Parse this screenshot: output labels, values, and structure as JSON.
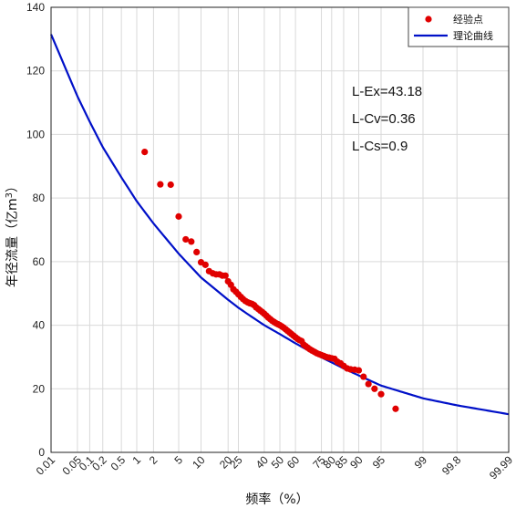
{
  "chart_data": {
    "type": "scatter",
    "title": "",
    "xlabel": "频率（%）",
    "ylabel_prefix": "年径流量（亿m",
    "ylabel_sup": "3",
    "ylabel_suffix": "）",
    "ylim": [
      0,
      140
    ],
    "ytick_step": 20,
    "x_scale": "probability (normal)",
    "xticks": [
      "0.01",
      "0.05",
      "0.1",
      "0.2",
      "0.5",
      "1",
      "2",
      "5",
      "10",
      "20",
      "25",
      "40",
      "50",
      "60",
      "75",
      "80",
      "85",
      "90",
      "95",
      "99",
      "99.8",
      "99.99"
    ],
    "legend_position": "top-right",
    "colors": {
      "points": "#e00000",
      "curve": "#0010c8",
      "grid": "#d9d9d9"
    },
    "annotations": [
      "L-Ex=43.18",
      "L-Cv=0.36",
      "L-Cs=0.9"
    ],
    "series": [
      {
        "name": "经验点",
        "kind": "scatter",
        "points": [
          [
            1.4,
            94.5
          ],
          [
            2.6,
            84.3
          ],
          [
            3.8,
            84.2
          ],
          [
            5.0,
            74.2
          ],
          [
            6.3,
            67.0
          ],
          [
            7.5,
            66.3
          ],
          [
            8.8,
            63.0
          ],
          [
            10.0,
            59.8
          ],
          [
            11.3,
            59.0
          ],
          [
            12.5,
            57.0
          ],
          [
            13.8,
            56.3
          ],
          [
            15.0,
            56.0
          ],
          [
            16.3,
            56.0
          ],
          [
            17.5,
            55.6
          ],
          [
            18.8,
            55.6
          ],
          [
            20.0,
            53.8
          ],
          [
            21.3,
            52.7
          ],
          [
            22.5,
            51.3
          ],
          [
            23.8,
            50.5
          ],
          [
            25.0,
            49.7
          ],
          [
            26.3,
            48.9
          ],
          [
            27.5,
            48.2
          ],
          [
            28.8,
            47.6
          ],
          [
            30.0,
            47.2
          ],
          [
            31.3,
            46.9
          ],
          [
            32.5,
            46.7
          ],
          [
            33.8,
            46.3
          ],
          [
            35.0,
            45.6
          ],
          [
            36.3,
            45.1
          ],
          [
            37.5,
            44.6
          ],
          [
            38.8,
            44.1
          ],
          [
            40.0,
            43.6
          ],
          [
            41.3,
            43.0
          ],
          [
            42.5,
            42.4
          ],
          [
            43.8,
            41.9
          ],
          [
            45.0,
            41.4
          ],
          [
            46.3,
            41.0
          ],
          [
            47.5,
            40.6
          ],
          [
            48.8,
            40.3
          ],
          [
            50.0,
            40.0
          ],
          [
            51.3,
            39.6
          ],
          [
            52.5,
            39.2
          ],
          [
            53.8,
            38.7
          ],
          [
            55.0,
            38.2
          ],
          [
            56.3,
            37.7
          ],
          [
            57.5,
            37.2
          ],
          [
            58.8,
            36.7
          ],
          [
            60.0,
            36.2
          ],
          [
            61.3,
            35.7
          ],
          [
            62.5,
            35.3
          ],
          [
            63.8,
            35.0
          ],
          [
            65.0,
            33.9
          ],
          [
            66.3,
            33.4
          ],
          [
            67.5,
            32.9
          ],
          [
            68.8,
            32.4
          ],
          [
            70.0,
            32.0
          ],
          [
            71.3,
            31.6
          ],
          [
            72.5,
            31.2
          ],
          [
            73.8,
            30.9
          ],
          [
            75.0,
            30.6
          ],
          [
            76.3,
            30.3
          ],
          [
            77.5,
            30.0
          ],
          [
            78.8,
            29.8
          ],
          [
            80.0,
            29.6
          ],
          [
            81.3,
            29.4
          ],
          [
            82.5,
            28.5
          ],
          [
            83.8,
            28.0
          ],
          [
            85.0,
            27.2
          ],
          [
            86.3,
            26.4
          ],
          [
            87.5,
            26.1
          ],
          [
            88.8,
            26.0
          ],
          [
            90.0,
            25.8
          ],
          [
            91.3,
            23.8
          ],
          [
            92.5,
            21.5
          ],
          [
            93.8,
            20.0
          ],
          [
            95.0,
            18.3
          ],
          [
            97.0,
            13.7
          ]
        ]
      },
      {
        "name": "理论曲线",
        "kind": "line",
        "points": [
          [
            0.01,
            131.5
          ],
          [
            0.05,
            112.0
          ],
          [
            0.1,
            104.0
          ],
          [
            0.2,
            96.0
          ],
          [
            0.5,
            86.5
          ],
          [
            1,
            79.0
          ],
          [
            2,
            72.0
          ],
          [
            5,
            62.5
          ],
          [
            10,
            55.0
          ],
          [
            20,
            48.0
          ],
          [
            25,
            45.5
          ],
          [
            30,
            43.5
          ],
          [
            40,
            40.0
          ],
          [
            50,
            37.2
          ],
          [
            60,
            34.3
          ],
          [
            70,
            31.4
          ],
          [
            75,
            29.9
          ],
          [
            80,
            28.3
          ],
          [
            85,
            26.4
          ],
          [
            90,
            24.2
          ],
          [
            95,
            21.0
          ],
          [
            99,
            17.0
          ],
          [
            99.8,
            14.8
          ],
          [
            99.99,
            12.0
          ]
        ]
      }
    ]
  }
}
